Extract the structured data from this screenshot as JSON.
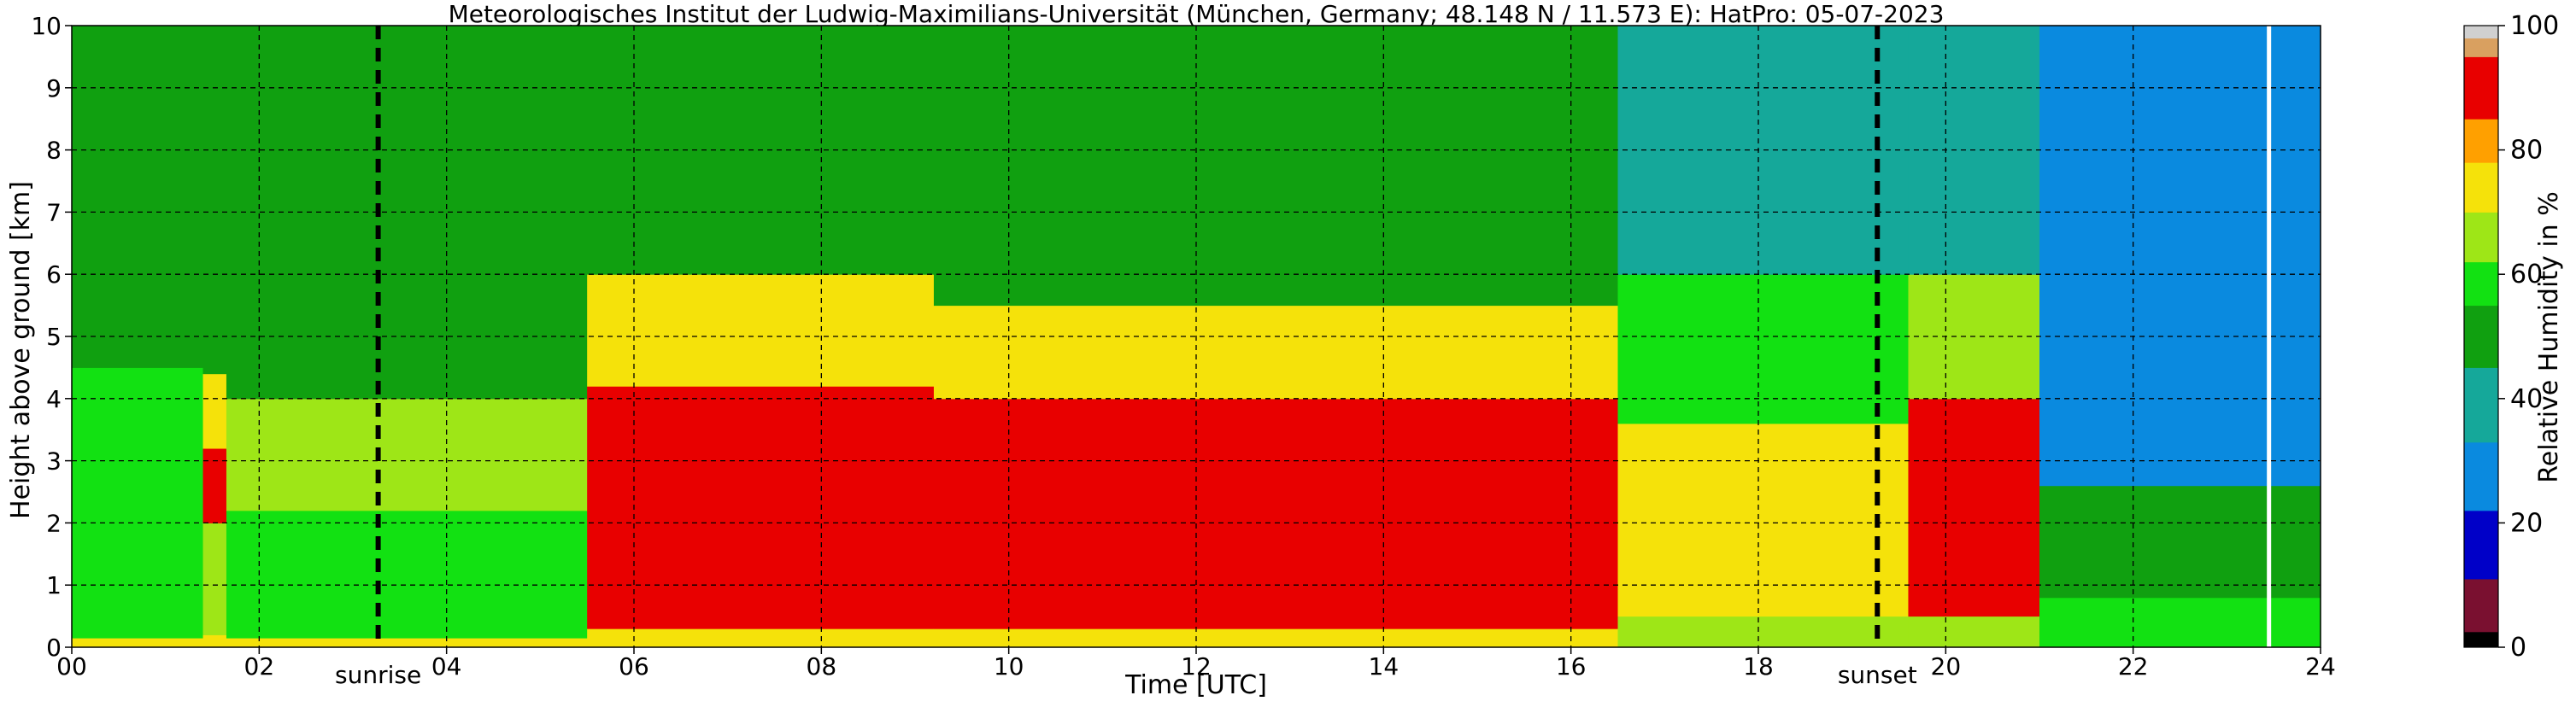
{
  "chart_data": {
    "type": "heatmap",
    "title": "Meteorologisches Institut der Ludwig-Maximilians-Universität (München, Germany; 48.148 N / 11.573 E):    HatPro: 05-07-2023",
    "xlabel": "Time [UTC]",
    "ylabel": "Height above ground [km]",
    "xlim": [
      0,
      24
    ],
    "ylim": [
      0,
      10
    ],
    "x_ticks": [
      "00",
      "02",
      "04",
      "06",
      "08",
      "10",
      "12",
      "14",
      "16",
      "18",
      "20",
      "22",
      "24"
    ],
    "y_ticks": [
      "0",
      "1",
      "2",
      "3",
      "4",
      "5",
      "6",
      "7",
      "8",
      "9",
      "10"
    ],
    "grid": true,
    "colorbar": {
      "label": "Relative Humidity in %",
      "range": [
        0,
        100
      ],
      "ticks": [
        "0",
        "20",
        "40",
        "60",
        "80",
        "100"
      ],
      "bands": [
        {
          "from": 0,
          "to": 2.5,
          "color": "#000000"
        },
        {
          "from": 2.5,
          "to": 11,
          "color": "#7a1030"
        },
        {
          "from": 11,
          "to": 22,
          "color": "#0000c8"
        },
        {
          "from": 22,
          "to": 33,
          "color": "#0a8adf"
        },
        {
          "from": 33,
          "to": 45,
          "color": "#15a89a"
        },
        {
          "from": 45,
          "to": 55,
          "color": "#10a010"
        },
        {
          "from": 55,
          "to": 62,
          "color": "#12e112"
        },
        {
          "from": 62,
          "to": 70,
          "color": "#9ee617"
        },
        {
          "from": 70,
          "to": 78,
          "color": "#f5e20a"
        },
        {
          "from": 78,
          "to": 85,
          "color": "#ffa000"
        },
        {
          "from": 85,
          "to": 95,
          "color": "#e80000"
        },
        {
          "from": 95,
          "to": 98,
          "color": "#d9a060"
        },
        {
          "from": 98,
          "to": 100,
          "color": "#d0d0d0"
        }
      ]
    },
    "markers": [
      {
        "label": "sunrise",
        "x": 3.27
      },
      {
        "label": "sunset",
        "x": 19.27
      }
    ],
    "data_gap_x": 23.45,
    "description_of_field": [
      {
        "t_from": 0.0,
        "t_to": 1.4,
        "layers": [
          {
            "h_to": 0.15,
            "rh": 78
          },
          {
            "h_to": 4.5,
            "rh": 58
          },
          {
            "h_to": 10,
            "rh": 47
          }
        ]
      },
      {
        "t_from": 1.4,
        "t_to": 1.65,
        "layers": [
          {
            "h_to": 0.2,
            "rh": 72
          },
          {
            "h_to": 2.0,
            "rh": 66
          },
          {
            "h_to": 3.2,
            "rh": 88
          },
          {
            "h_to": 4.4,
            "rh": 74
          },
          {
            "h_to": 10,
            "rh": 52
          }
        ]
      },
      {
        "t_from": 1.65,
        "t_to": 5.5,
        "layers": [
          {
            "h_to": 0.15,
            "rh": 76
          },
          {
            "h_to": 2.2,
            "rh": 56
          },
          {
            "h_to": 4.0,
            "rh": 64
          },
          {
            "h_to": 10,
            "rh": 48
          }
        ]
      },
      {
        "t_from": 5.5,
        "t_to": 9.2,
        "layers": [
          {
            "h_to": 0.3,
            "rh": 76
          },
          {
            "h_to": 4.2,
            "rh": 90
          },
          {
            "h_to": 6.0,
            "rh": 74
          },
          {
            "h_to": 10,
            "rh": 54
          }
        ]
      },
      {
        "t_from": 9.2,
        "t_to": 16.5,
        "layers": [
          {
            "h_to": 0.3,
            "rh": 78
          },
          {
            "h_to": 4.0,
            "rh": 90
          },
          {
            "h_to": 5.5,
            "rh": 74
          },
          {
            "h_to": 10,
            "rh": 52
          }
        ]
      },
      {
        "t_from": 16.5,
        "t_to": 19.6,
        "layers": [
          {
            "h_to": 0.5,
            "rh": 64
          },
          {
            "h_to": 3.6,
            "rh": 74
          },
          {
            "h_to": 6.0,
            "rh": 58
          },
          {
            "h_to": 10,
            "rh": 42
          }
        ]
      },
      {
        "t_from": 19.6,
        "t_to": 21.0,
        "layers": [
          {
            "h_to": 0.5,
            "rh": 66
          },
          {
            "h_to": 4.0,
            "rh": 88
          },
          {
            "h_to": 6.0,
            "rh": 66
          },
          {
            "h_to": 10,
            "rh": 40
          }
        ]
      },
      {
        "t_from": 21.0,
        "t_to": 24.0,
        "layers": [
          {
            "h_to": 0.8,
            "rh": 60
          },
          {
            "h_to": 2.6,
            "rh": 50
          },
          {
            "h_to": 10,
            "rh": 30
          }
        ]
      }
    ]
  }
}
